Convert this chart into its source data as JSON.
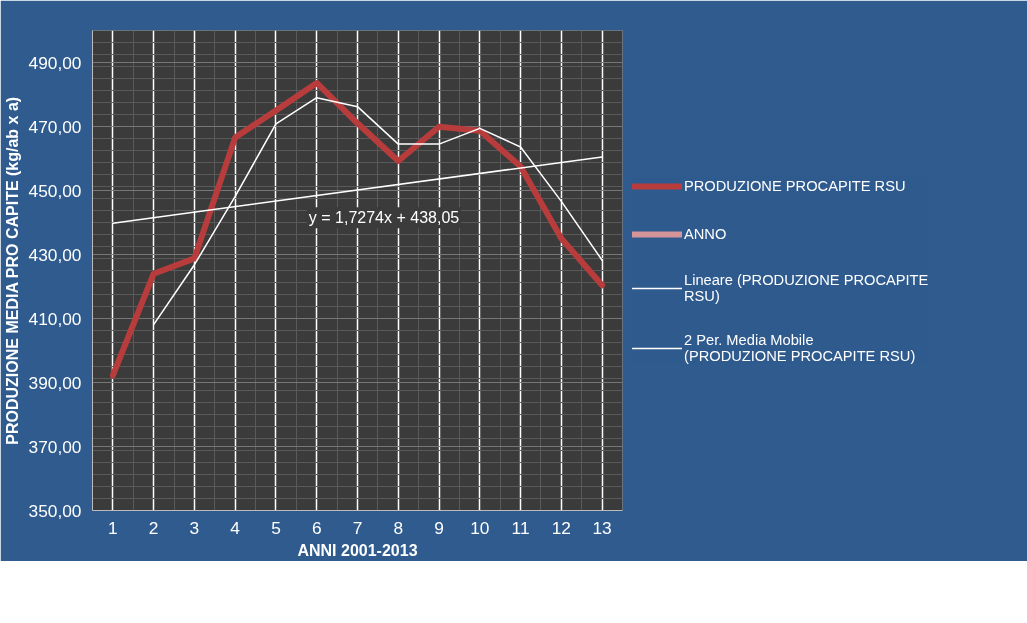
{
  "chart_data": {
    "type": "line",
    "xlabel": "ANNI 2001-2013",
    "ylabel": "PRODUZIONE MEDIA PRO CAPITE (kg/ab x a)",
    "x": [
      1,
      2,
      3,
      4,
      5,
      6,
      7,
      8,
      9,
      10,
      11,
      12,
      13
    ],
    "xlim": [
      0.5,
      13.5
    ],
    "xticks": [
      1,
      2,
      3,
      4,
      5,
      6,
      7,
      8,
      9,
      10,
      11,
      12,
      13
    ],
    "ylim": [
      350,
      500
    ],
    "yticks": [
      {
        "value": 350,
        "label": "350,00"
      },
      {
        "value": 370,
        "label": "370,00"
      },
      {
        "value": 390,
        "label": "390,00"
      },
      {
        "value": 410,
        "label": "410,00"
      },
      {
        "value": 430,
        "label": "430,00"
      },
      {
        "value": 450,
        "label": "450,00"
      },
      {
        "value": 470,
        "label": "470,00"
      },
      {
        "value": 490,
        "label": "490,00"
      }
    ],
    "grid": true,
    "legend": "right",
    "line_style": "solid",
    "marker": "none",
    "series": [
      {
        "name": "PRODUZIONE PROCAPITE RSU",
        "color": "#b83c3c",
        "values": [
          392.2,
          424,
          428.8,
          466.6,
          475,
          483.6,
          471,
          459.2,
          469.9,
          468.7,
          457.5,
          435,
          420.4
        ]
      },
      {
        "name": "ANNO",
        "color": "#d4959a",
        "values": [
          null,
          null,
          null,
          null,
          null,
          null,
          null,
          null,
          null,
          null,
          null,
          null,
          null
        ]
      },
      {
        "name": "Lineare (PRODUZIONE PROCAPITE RSU)",
        "color": "#ffffff",
        "type": "line",
        "x": [
          1,
          13
        ],
        "values": [
          439.8,
          460.5
        ]
      },
      {
        "name": "2 Per. Media Mobile (PRODUZIONE PROCAPITE RSU)",
        "color": "#ffffff",
        "x": [
          2,
          3,
          4,
          5,
          6,
          7,
          8,
          9,
          10,
          11,
          12,
          13
        ],
        "values": [
          408.1,
          426.8,
          448.2,
          470.8,
          479,
          476.2,
          464.5,
          464.5,
          469.4,
          463.6,
          446.6,
          428.2
        ]
      }
    ],
    "annotations": [
      "y = 1,7274x + 438,05"
    ]
  }
}
